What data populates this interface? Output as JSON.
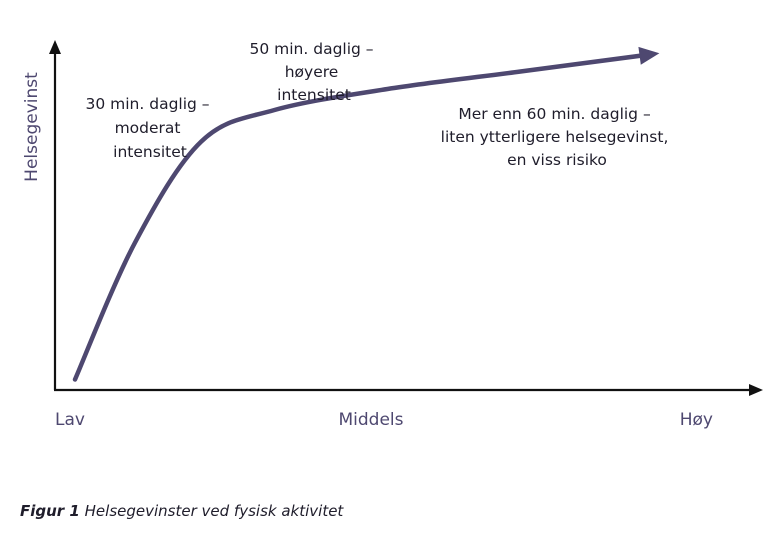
{
  "colors": {
    "curve": "#4e4870",
    "axis": "#111111",
    "axis_label": "#4e4870",
    "text": "#1f1d2b"
  },
  "chart_data": {
    "type": "line",
    "ylabel": "Helsegevinst",
    "x_categories": [
      "Lav",
      "Middels",
      "Høy"
    ],
    "xlim": [
      0,
      1
    ],
    "ylim": [
      0,
      1
    ],
    "series": [
      {
        "values": [
          [
            0.03,
            0.03
          ],
          [
            0.12,
            0.42
          ],
          [
            0.22,
            0.71
          ],
          [
            0.33,
            0.8
          ],
          [
            0.5,
            0.86
          ],
          [
            0.7,
            0.91
          ],
          [
            0.9,
            0.96
          ]
        ]
      }
    ],
    "annotations": [
      {
        "lines": [
          "30 min. daglig –",
          "moderat",
          "intensitet"
        ]
      },
      {
        "lines": [
          "50 min. daglig –",
          "høyere",
          "intensitet"
        ]
      },
      {
        "lines": [
          "Mer enn 60  min. daglig –",
          "liten ytterligere helsegevinst,",
          "en viss risiko"
        ]
      }
    ],
    "grid": false,
    "legend": "none"
  },
  "caption": {
    "number": "Figur 1",
    "text": "Helsegevinster ved fysisk aktivitet"
  }
}
